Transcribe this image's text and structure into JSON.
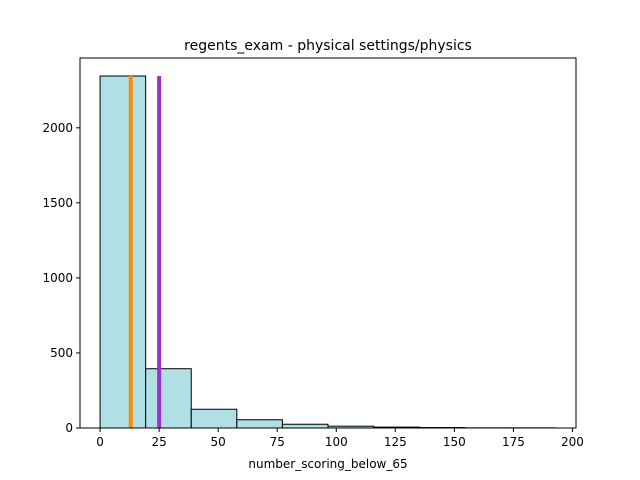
{
  "chart_data": {
    "type": "bar",
    "title": "regents_exam - physical settings/physics",
    "xlabel": "number_scoring_below_65",
    "ylabel": "",
    "xlim": [
      -8.5,
      201.5
    ],
    "ylim": [
      0,
      2465
    ],
    "bins": [
      {
        "x0": 0,
        "x1": 19.3,
        "count": 2345
      },
      {
        "x0": 19.3,
        "x1": 38.6,
        "count": 395
      },
      {
        "x0": 38.6,
        "x1": 57.9,
        "count": 125
      },
      {
        "x0": 57.9,
        "x1": 77.2,
        "count": 55
      },
      {
        "x0": 77.2,
        "x1": 96.5,
        "count": 25
      },
      {
        "x0": 96.5,
        "x1": 115.8,
        "count": 12
      },
      {
        "x0": 115.8,
        "x1": 135.1,
        "count": 6
      },
      {
        "x0": 135.1,
        "x1": 154.4,
        "count": 3
      },
      {
        "x0": 154.4,
        "x1": 173.7,
        "count": 1
      },
      {
        "x0": 173.7,
        "x1": 193,
        "count": 1
      }
    ],
    "xticks": [
      0,
      25,
      50,
      75,
      100,
      125,
      150,
      175,
      200
    ],
    "yticks": [
      0,
      500,
      1000,
      1500,
      2000
    ],
    "vlines": [
      {
        "x": 13,
        "ytop": 2345,
        "color": "#ff8c00"
      },
      {
        "x": 25,
        "ytop": 2345,
        "color": "#9932cc"
      }
    ],
    "bar_color": "#b0e0e6",
    "bar_edge_color": "#000000",
    "grid": false,
    "legend": false
  }
}
